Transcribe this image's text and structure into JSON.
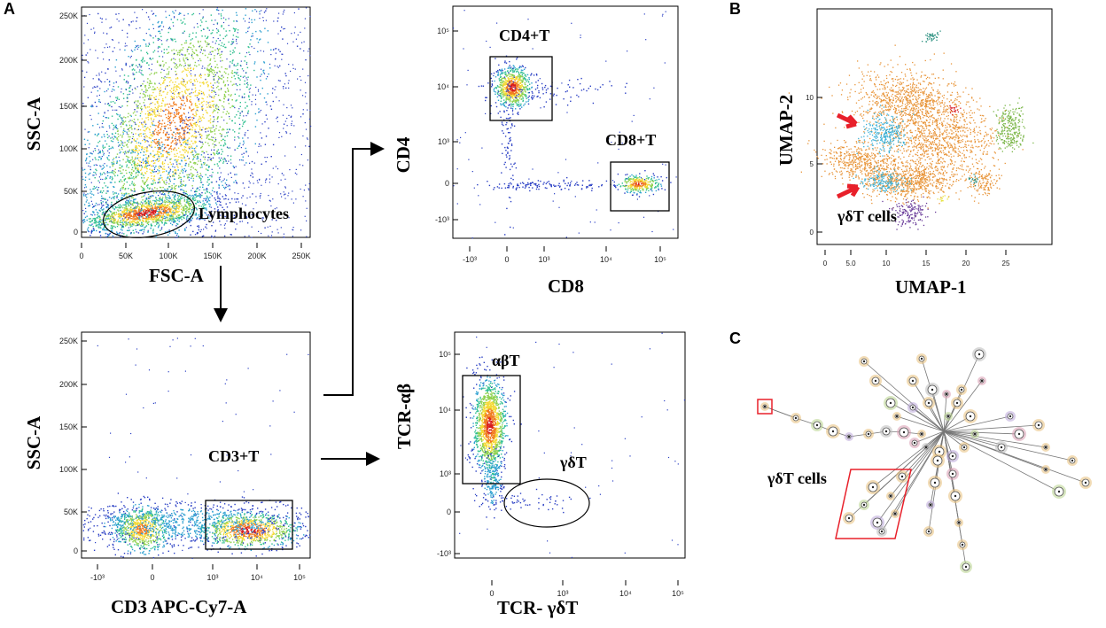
{
  "panel_labels": {
    "a": "A",
    "b": "B",
    "c": "C"
  },
  "chart_data": [
    {
      "type": "scatter",
      "id": "fsc_ssc",
      "xlabel": "FSC-A",
      "ylabel": "SSC-A",
      "x_ticks": [
        "0",
        "50K",
        "100K",
        "150K",
        "200K",
        "250K"
      ],
      "y_ticks": [
        "0",
        "50K",
        "100K",
        "150K",
        "200K",
        "250K"
      ],
      "xlim": [
        0,
        262144
      ],
      "ylim": [
        0,
        262144
      ],
      "gates": [
        {
          "name": "Lymphocytes",
          "label": "Lymphocytes",
          "shape": "ellipse"
        }
      ]
    },
    {
      "type": "scatter",
      "id": "cd3_ssc",
      "xlabel": "CD3 APC-Cy7-A",
      "ylabel": "SSC-A",
      "x_ticks": [
        "-10³",
        "0",
        "10³",
        "10⁴",
        "10⁵"
      ],
      "y_ticks": [
        "0",
        "50K",
        "100K",
        "150K",
        "200K",
        "250K"
      ],
      "gates": [
        {
          "name": "CD3+T",
          "label": "CD3+T",
          "shape": "rectangle"
        }
      ]
    },
    {
      "type": "scatter",
      "id": "cd8_cd4",
      "xlabel": "CD8",
      "ylabel": "CD4",
      "x_ticks": [
        "-10³",
        "0",
        "10³",
        "10⁴",
        "10⁵"
      ],
      "y_ticks": [
        "-10³",
        "0",
        "10³",
        "10⁴",
        "10⁵"
      ],
      "gates": [
        {
          "name": "CD4+T",
          "label": "CD4+T",
          "shape": "rectangle"
        },
        {
          "name": "CD8+T",
          "label": "CD8+T",
          "shape": "rectangle"
        }
      ]
    },
    {
      "type": "scatter",
      "id": "tcrgd_tcrab",
      "xlabel": "TCR- γδT",
      "ylabel": "TCR-αβ",
      "x_ticks": [
        "0",
        "10³",
        "10⁴",
        "10⁵"
      ],
      "y_ticks": [
        "-10³",
        "0",
        "10³",
        "10⁴",
        "10⁵"
      ],
      "gates": [
        {
          "name": "αβT",
          "label": "αβT",
          "shape": "rectangle"
        },
        {
          "name": "γδT",
          "label": "γδT",
          "shape": "ellipse"
        }
      ]
    },
    {
      "type": "scatter",
      "id": "umap",
      "xlabel": "UMAP-1",
      "ylabel": "UMAP-2",
      "x_ticks": [
        "0",
        "5.0",
        "10",
        "15",
        "20",
        "25"
      ],
      "y_ticks": [
        "0",
        "5",
        "10"
      ],
      "annotation": "γδT cells",
      "clusters": [
        {
          "name": "main",
          "color": "#e8953a"
        },
        {
          "name": "γδT cells",
          "color": "#3bb0d6"
        },
        {
          "name": "green",
          "color": "#7ab648"
        },
        {
          "name": "purple",
          "color": "#6a3c9a"
        },
        {
          "name": "red",
          "color": "#d9232b"
        },
        {
          "name": "yellow",
          "color": "#e6e23a"
        },
        {
          "name": "teal",
          "color": "#2a8f7f"
        }
      ]
    }
  ],
  "tree": {
    "annotation": "γδT cells"
  },
  "colors": {
    "highlight": "#e8202a",
    "arrow": "#e8202a"
  }
}
